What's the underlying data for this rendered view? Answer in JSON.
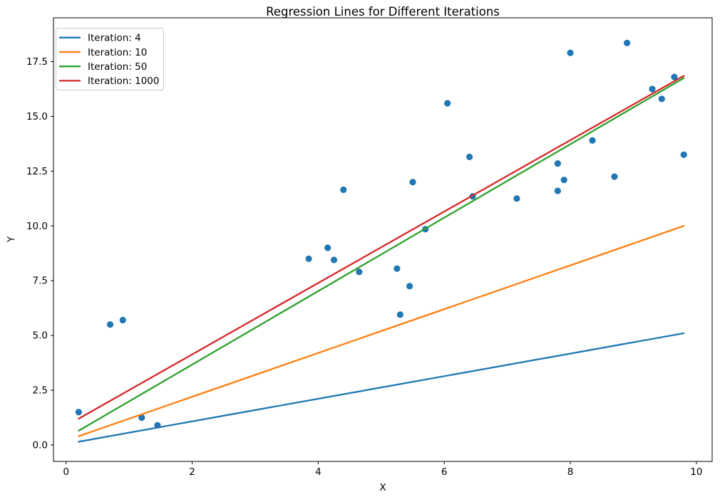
{
  "figure": {
    "background": "#ffffff"
  },
  "chart_data": {
    "type": "scatter",
    "title": "Regression Lines for Different Iterations",
    "xlabel": "X",
    "ylabel": "Y",
    "xlim": [
      -0.2,
      10.25
    ],
    "ylim": [
      -0.75,
      19.5
    ],
    "grid": false,
    "legend_position": "upper left",
    "xticks": [
      {
        "value": 0,
        "label": "0"
      },
      {
        "value": 2,
        "label": "2"
      },
      {
        "value": 4,
        "label": "4"
      },
      {
        "value": 6,
        "label": "6"
      },
      {
        "value": 8,
        "label": "8"
      },
      {
        "value": 10,
        "label": "10"
      }
    ],
    "yticks": [
      {
        "value": 0,
        "label": "0.0"
      },
      {
        "value": 2.5,
        "label": "2.5"
      },
      {
        "value": 5,
        "label": "5.0"
      },
      {
        "value": 7.5,
        "label": "7.5"
      },
      {
        "value": 10,
        "label": "10.0"
      },
      {
        "value": 12.5,
        "label": "12.5"
      },
      {
        "value": 15,
        "label": "15.0"
      },
      {
        "value": 17.5,
        "label": "17.5"
      }
    ],
    "scatter_series": {
      "name": "data-points",
      "color": "#1f77b4",
      "marker_radius": 4.6,
      "points": [
        [
          0.2,
          1.5
        ],
        [
          0.7,
          5.5
        ],
        [
          0.9,
          5.7
        ],
        [
          1.2,
          1.25
        ],
        [
          1.45,
          0.9
        ],
        [
          3.85,
          8.5
        ],
        [
          4.15,
          9.0
        ],
        [
          4.25,
          8.45
        ],
        [
          4.4,
          11.65
        ],
        [
          4.65,
          7.9
        ],
        [
          5.25,
          8.05
        ],
        [
          5.3,
          5.95
        ],
        [
          5.45,
          7.25
        ],
        [
          5.5,
          12.0
        ],
        [
          5.7,
          9.85
        ],
        [
          6.05,
          15.6
        ],
        [
          6.4,
          13.15
        ],
        [
          6.45,
          11.35
        ],
        [
          7.15,
          11.25
        ],
        [
          7.8,
          11.6
        ],
        [
          7.8,
          12.85
        ],
        [
          7.9,
          12.1
        ],
        [
          8.0,
          17.9
        ],
        [
          8.35,
          13.9
        ],
        [
          8.7,
          12.25
        ],
        [
          8.9,
          18.35
        ],
        [
          9.3,
          16.25
        ],
        [
          9.45,
          15.8
        ],
        [
          9.65,
          16.8
        ],
        [
          9.8,
          13.25
        ]
      ]
    },
    "lines": [
      {
        "label": "Iteration: 4",
        "color": "#1f77b4",
        "x": [
          0.2,
          9.8
        ],
        "y": [
          0.15,
          5.1
        ]
      },
      {
        "label": "Iteration: 10",
        "color": "#ff7f0e",
        "x": [
          0.2,
          9.8
        ],
        "y": [
          0.4,
          10.0
        ]
      },
      {
        "label": "Iteration: 50",
        "color": "#2ca02c",
        "x": [
          0.2,
          9.8
        ],
        "y": [
          0.65,
          16.75
        ]
      },
      {
        "label": "Iteration: 1000",
        "color": "#d62728",
        "x": [
          0.2,
          9.8
        ],
        "y": [
          1.2,
          16.85
        ]
      }
    ],
    "legend_entries": [
      "Iteration: 4",
      "Iteration: 10",
      "Iteration: 50",
      "Iteration: 1000"
    ]
  }
}
